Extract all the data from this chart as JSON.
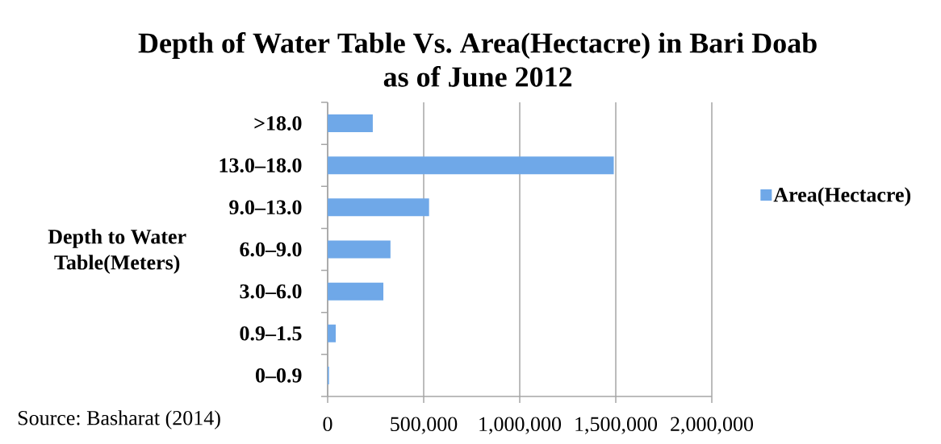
{
  "chart_data": {
    "type": "bar",
    "orientation": "horizontal",
    "title": "Depth of Water Table Vs. Area(Hectacre) in Bari Doab as of June 2012",
    "ylabel": "Depth to Water Table(Meters)",
    "categories": [
      ">18.0",
      "13.0–18.0",
      "9.0–13.0",
      "6.0–9.0",
      "3.0–6.0",
      "0.9–1.5",
      "0–0.9"
    ],
    "series": [
      {
        "name": "Area(Hectacre)",
        "color": "#6fa8e8",
        "values": [
          235000,
          1490000,
          528000,
          327000,
          290000,
          42000,
          7000
        ]
      }
    ],
    "xlim": [
      0,
      2000000
    ],
    "xticks": [
      0,
      {
        "value": 500000,
        "label": "500,000"
      },
      {
        "value": 1000000,
        "label": "1,000,000"
      },
      {
        "value": 1500000,
        "label": "1,500,000"
      },
      {
        "value": 2000000,
        "label": "2,000,000"
      }
    ],
    "grid": "x",
    "legend": "right",
    "annotations": [
      "Source: Basharat (2014)"
    ]
  }
}
